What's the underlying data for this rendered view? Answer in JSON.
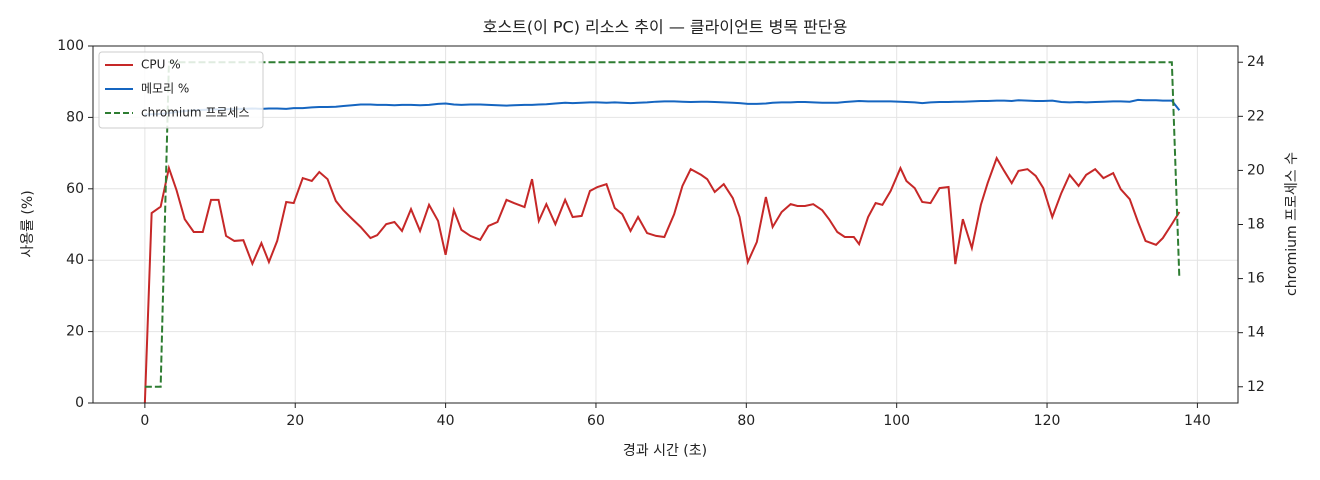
{
  "chart_data": {
    "type": "line",
    "title": "호스트(이 PC) 리소스 추이 — 클라이언트 병목 판단용",
    "x_label": "경과 시간 (초)",
    "y_label": "사용률 (%)",
    "y2_label": "chromium 프로세스 수",
    "x": [
      0,
      0.9,
      2.1,
      3.2,
      4.2,
      5.3,
      6.5,
      7.7,
      8.8,
      9.8,
      10.8,
      11.9,
      13.1,
      14.3,
      15.5,
      16.5,
      17.6,
      18.8,
      19.8,
      21.0,
      22.2,
      23.2,
      24.3,
      25.4,
      26.4,
      27.6,
      28.7,
      30.0,
      30.9,
      32.1,
      33.2,
      34.2,
      35.4,
      36.6,
      37.8,
      39.0,
      40.0,
      41.1,
      42.1,
      43.3,
      44.6,
      45.7,
      46.9,
      48.1,
      49.1,
      50.5,
      51.5,
      52.4,
      53.4,
      54.6,
      55.9,
      56.9,
      58.1,
      59.2,
      60.2,
      61.4,
      62.5,
      63.5,
      64.6,
      65.6,
      66.8,
      68.0,
      69.1,
      70.4,
      71.5,
      72.6,
      74.0,
      74.8,
      75.8,
      77.0,
      78.2,
      79.1,
      80.2,
      81.4,
      82.6,
      83.5,
      84.7,
      85.9,
      86.8,
      87.8,
      88.9,
      90.1,
      91.0,
      92.1,
      93.1,
      94.3,
      95.0,
      96.2,
      97.2,
      98.1,
      99.2,
      100.5,
      101.3,
      102.4,
      103.4,
      104.5,
      105.7,
      106.9,
      107.8,
      108.8,
      110.0,
      111.2,
      112.1,
      113.3,
      114.3,
      115.3,
      116.2,
      117.4,
      118.5,
      119.5,
      120.7,
      121.9,
      123.0,
      124.2,
      125.2,
      126.4,
      127.5,
      128.8,
      129.8,
      131.0,
      132.1,
      133.1,
      134.5,
      135.4,
      136.6,
      137.6
    ],
    "series": [
      {
        "name": "CPU %",
        "color": "#c62828",
        "values": [
          0,
          53.2,
          55,
          65.8,
          59.7,
          51.5,
          47.9,
          47.9,
          56.9,
          56.9,
          46.8,
          45.4,
          45.6,
          39,
          44.8,
          39.5,
          45.4,
          56.3,
          56,
          63,
          62.2,
          64.7,
          62.7,
          56.6,
          54,
          51.5,
          49.3,
          46.2,
          47,
          50.1,
          50.7,
          48.2,
          54.3,
          48.2,
          55.5,
          51,
          41.5,
          54,
          48.5,
          46.8,
          45.7,
          49.6,
          50.7,
          56.9,
          56,
          54.9,
          62.7,
          51,
          55.7,
          50.1,
          56.9,
          52.1,
          52.4,
          59.4,
          60.5,
          61.3,
          54.6,
          52.9,
          48.2,
          52.1,
          47.6,
          46.8,
          46.5,
          52.9,
          60.8,
          65.5,
          63.9,
          62.7,
          59.1,
          61.3,
          57.4,
          52.1,
          39.5,
          45.1,
          57.7,
          49.3,
          53.5,
          55.7,
          55.2,
          55.2,
          55.7,
          54,
          51.5,
          47.9,
          46.5,
          46.5,
          44.5,
          52.1,
          56,
          55.5,
          59.4,
          65.8,
          62.2,
          60.2,
          56.3,
          56,
          60.2,
          60.5,
          38.9,
          51.5,
          43.4,
          55.5,
          61.6,
          68.6,
          65,
          61.6,
          65,
          65.5,
          63.6,
          60.2,
          52.1,
          58.8,
          63.9,
          60.8,
          63.9,
          65.5,
          63,
          64.4,
          59.9,
          57.1,
          50.7,
          45.4,
          44.3,
          46.2,
          50.1,
          53.5
        ]
      },
      {
        "name": "메모리 %",
        "color": "#1565c0",
        "values": [
          80.8,
          80.9,
          81.0,
          81.2,
          81.5,
          81.8,
          82.0,
          82.1,
          82.2,
          82.3,
          82.3,
          82.4,
          82.4,
          82.5,
          82.4,
          82.5,
          82.5,
          82.4,
          82.6,
          82.6,
          82.8,
          82.9,
          82.9,
          83.0,
          83.2,
          83.4,
          83.6,
          83.6,
          83.5,
          83.5,
          83.4,
          83.5,
          83.5,
          83.4,
          83.5,
          83.8,
          83.9,
          83.6,
          83.5,
          83.6,
          83.6,
          83.5,
          83.4,
          83.3,
          83.4,
          83.5,
          83.5,
          83.6,
          83.7,
          83.9,
          84.1,
          84.0,
          84.1,
          84.2,
          84.2,
          84.1,
          84.2,
          84.1,
          84.0,
          84.1,
          84.2,
          84.4,
          84.5,
          84.5,
          84.4,
          84.3,
          84.4,
          84.4,
          84.3,
          84.2,
          84.1,
          84.0,
          83.8,
          83.8,
          83.9,
          84.1,
          84.2,
          84.2,
          84.3,
          84.3,
          84.2,
          84.1,
          84.1,
          84.1,
          84.3,
          84.5,
          84.6,
          84.5,
          84.5,
          84.5,
          84.5,
          84.4,
          84.3,
          84.2,
          84.0,
          84.2,
          84.3,
          84.3,
          84.4,
          84.4,
          84.5,
          84.6,
          84.6,
          84.7,
          84.7,
          84.6,
          84.8,
          84.7,
          84.6,
          84.6,
          84.7,
          84.3,
          84.2,
          84.3,
          84.2,
          84.3,
          84.4,
          84.5,
          84.5,
          84.4,
          84.9,
          84.8,
          84.8,
          84.7,
          84.7,
          82.0
        ]
      },
      {
        "name": "chromium 프로세스",
        "color": "#2e7d32",
        "dashed": true,
        "axis": "y2",
        "values": [
          12,
          12,
          12,
          24,
          24,
          24,
          24,
          24,
          24,
          24,
          24,
          24,
          24,
          24,
          24,
          24,
          24,
          24,
          24,
          24,
          24,
          24,
          24,
          24,
          24,
          24,
          24,
          24,
          24,
          24,
          24,
          24,
          24,
          24,
          24,
          24,
          24,
          24,
          24,
          24,
          24,
          24,
          24,
          24,
          24,
          24,
          24,
          24,
          24,
          24,
          24,
          24,
          24,
          24,
          24,
          24,
          24,
          24,
          24,
          24,
          24,
          24,
          24,
          24,
          24,
          24,
          24,
          24,
          24,
          24,
          24,
          24,
          24,
          24,
          24,
          24,
          24,
          24,
          24,
          24,
          24,
          24,
          24,
          24,
          24,
          24,
          24,
          24,
          24,
          24,
          24,
          24,
          24,
          24,
          24,
          24,
          24,
          24,
          24,
          24,
          24,
          24,
          24,
          24,
          24,
          24,
          24,
          24,
          24,
          24,
          24,
          24,
          24,
          24,
          24,
          24,
          24,
          24,
          24,
          24,
          24,
          24,
          24,
          24,
          24,
          16
        ]
      }
    ],
    "xlim": [
      -6.9,
      145.4
    ],
    "xticks": [
      0,
      20,
      40,
      60,
      80,
      100,
      120,
      140
    ],
    "ylim": [
      0,
      100
    ],
    "yticks": [
      0,
      20,
      40,
      60,
      80,
      100
    ],
    "y2lim": [
      11.4,
      24.6
    ],
    "y2ticks": [
      12,
      14,
      16,
      18,
      20,
      22,
      24
    ],
    "grid": true,
    "legend": "upper left"
  }
}
